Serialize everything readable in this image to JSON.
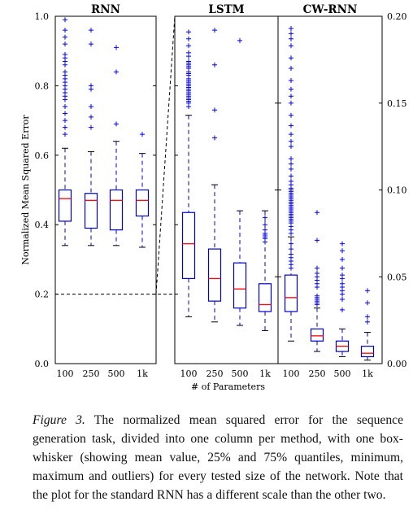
{
  "chart_data": {
    "type": "box",
    "ylabel": "Normalized Mean Squared Error",
    "xlabel": "# of Parameters",
    "categories": [
      "100",
      "250",
      "500",
      "1k"
    ],
    "left_axis": {
      "ylim": [
        0.0,
        1.0
      ],
      "ticks": [
        "0.0",
        "0.2",
        "0.4",
        "0.6",
        "0.8",
        "1.0"
      ]
    },
    "right_axis": {
      "ylim": [
        0.0,
        0.2
      ],
      "ticks": [
        "0.00",
        "0.05",
        "0.10",
        "0.15",
        "0.20"
      ]
    },
    "zoom_level": 0.2,
    "panels": [
      {
        "title": "RNN",
        "scale": "left",
        "boxes": [
          {
            "category": "100",
            "whislo": 0.34,
            "q1": 0.41,
            "med": 0.475,
            "q3": 0.5,
            "whishi": 0.62,
            "fliers": [
              0.66,
              0.68,
              0.7,
              0.72,
              0.74,
              0.76,
              0.77,
              0.78,
              0.79,
              0.8,
              0.81,
              0.82,
              0.83,
              0.84,
              0.86,
              0.87,
              0.88,
              0.89,
              0.92,
              0.94,
              0.96,
              0.99
            ]
          },
          {
            "category": "250",
            "whislo": 0.34,
            "q1": 0.39,
            "med": 0.47,
            "q3": 0.49,
            "whishi": 0.61,
            "fliers": [
              0.68,
              0.71,
              0.74,
              0.79,
              0.8,
              0.92,
              0.96
            ]
          },
          {
            "category": "500",
            "whislo": 0.34,
            "q1": 0.385,
            "med": 0.47,
            "q3": 0.5,
            "whishi": 0.64,
            "fliers": [
              0.69,
              0.84,
              0.91
            ]
          },
          {
            "category": "1k",
            "whislo": 0.335,
            "q1": 0.425,
            "med": 0.47,
            "q3": 0.5,
            "whishi": 0.605,
            "fliers": [
              0.66
            ]
          }
        ]
      },
      {
        "title": "LSTM",
        "scale": "right",
        "boxes": [
          {
            "category": "100",
            "whislo": 0.027,
            "q1": 0.049,
            "med": 0.069,
            "q3": 0.087,
            "whishi": 0.143,
            "fliers": [
              0.148,
              0.15,
              0.151,
              0.152,
              0.153,
              0.154,
              0.155,
              0.156,
              0.157,
              0.158,
              0.159,
              0.16,
              0.161,
              0.162,
              0.163,
              0.164,
              0.166,
              0.167,
              0.168,
              0.17,
              0.171,
              0.172,
              0.173,
              0.174,
              0.177,
              0.179,
              0.183,
              0.187,
              0.191
            ]
          },
          {
            "category": "250",
            "whislo": 0.024,
            "q1": 0.036,
            "med": 0.049,
            "q3": 0.066,
            "whishi": 0.103,
            "fliers": [
              0.13,
              0.146,
              0.172,
              0.192
            ]
          },
          {
            "category": "500",
            "whislo": 0.022,
            "q1": 0.032,
            "med": 0.043,
            "q3": 0.058,
            "whishi": 0.088,
            "fliers": [
              0.186
            ]
          },
          {
            "category": "1k",
            "whislo": 0.019,
            "q1": 0.03,
            "med": 0.034,
            "q3": 0.046,
            "whishi": 0.088,
            "fliers": [
              0.07,
              0.072,
              0.073,
              0.074,
              0.075,
              0.077,
              0.08,
              0.084
            ]
          }
        ]
      },
      {
        "title": "CW-RNN",
        "scale": "right",
        "boxes": [
          {
            "category": "100",
            "whislo": 0.013,
            "q1": 0.03,
            "med": 0.038,
            "q3": 0.051,
            "whishi": 0.073,
            "fliers": [
              0.055,
              0.057,
              0.059,
              0.061,
              0.063,
              0.066,
              0.069,
              0.075,
              0.077,
              0.079,
              0.081,
              0.082,
              0.083,
              0.084,
              0.085,
              0.086,
              0.087,
              0.088,
              0.089,
              0.09,
              0.091,
              0.092,
              0.093,
              0.094,
              0.095,
              0.096,
              0.097,
              0.098,
              0.099,
              0.1,
              0.101,
              0.103,
              0.105,
              0.108,
              0.112,
              0.115,
              0.118,
              0.125,
              0.128,
              0.132,
              0.137,
              0.143,
              0.15,
              0.154,
              0.158,
              0.163,
              0.17,
              0.176,
              0.183,
              0.187,
              0.19,
              0.193
            ]
          },
          {
            "category": "250",
            "whislo": 0.007,
            "q1": 0.013,
            "med": 0.016,
            "q3": 0.02,
            "whishi": 0.032,
            "fliers": [
              0.034,
              0.035,
              0.036,
              0.037,
              0.038,
              0.039,
              0.044,
              0.046,
              0.048,
              0.05,
              0.052,
              0.055,
              0.071,
              0.087
            ]
          },
          {
            "category": "500",
            "whislo": 0.004,
            "q1": 0.007,
            "med": 0.01,
            "q3": 0.013,
            "whishi": 0.02,
            "fliers": [
              0.031,
              0.037,
              0.04,
              0.042,
              0.044,
              0.046,
              0.049,
              0.051,
              0.055,
              0.06,
              0.065,
              0.069
            ]
          },
          {
            "category": "1k",
            "whislo": 0.002,
            "q1": 0.004,
            "med": 0.006,
            "q3": 0.01,
            "whishi": 0.018,
            "fliers": [
              0.024,
              0.027,
              0.035,
              0.042
            ]
          }
        ]
      }
    ],
    "colors": {
      "box": "#0000cc",
      "median": "#ff0000",
      "whisker": "#0000cc",
      "flier": "#0000ff",
      "axis": "#000000"
    }
  },
  "caption": {
    "label": "Figure 3.",
    "text": " The normalized mean squared error for the sequence generation task, divided into one column per method, with one box-whisker (showing mean value, 25% and 75% quantiles, minimum, maximum and outliers) for every tested size of the network. Note that the plot for the standard RNN has a different scale than the other two."
  }
}
